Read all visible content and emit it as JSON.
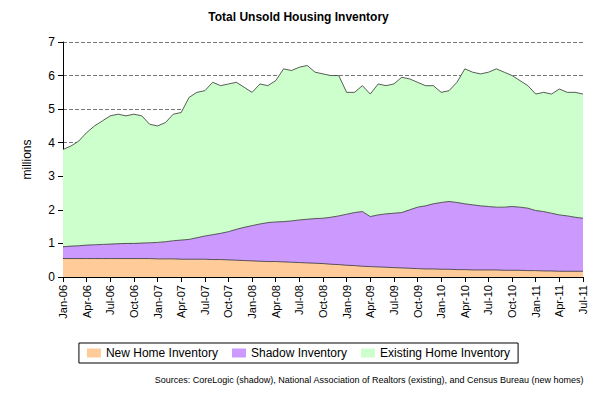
{
  "chart_data": {
    "type": "area",
    "title": "Total Unsold Housing Inventory",
    "y_label": "millions",
    "source": "Sources: CoreLogic (shadow), National Association of Realtors (existing), and Census Bureau (new homes)",
    "stacked": true,
    "grid": true,
    "legend": "bottom",
    "categories": [
      "Jan-06",
      null,
      null,
      "Apr-06",
      null,
      null,
      "Jul-06",
      null,
      null,
      "Oct-06",
      null,
      null,
      "Jan-07",
      null,
      null,
      "Apr-07",
      null,
      null,
      "Jul-07",
      null,
      null,
      "Oct-07",
      null,
      null,
      "Jan-08",
      null,
      null,
      "Apr-08",
      null,
      null,
      "Jul-08",
      null,
      null,
      "Oct-08",
      null,
      null,
      "Jan-09",
      null,
      null,
      "Apr-09",
      null,
      null,
      "Jul-09",
      null,
      null,
      "Oct-09",
      null,
      null,
      "Jan-10",
      null,
      null,
      "Apr-10",
      null,
      null,
      "Jul-10",
      null,
      null,
      "Oct-10",
      null,
      null,
      "Jan-11",
      null,
      null,
      "Apr-11",
      null,
      null,
      "Jul-11"
    ],
    "series": [
      {
        "name": "New Home Inventory",
        "color": "#FFCC99",
        "values": [
          0.55,
          0.55,
          0.55,
          0.55,
          0.55,
          0.55,
          0.55,
          0.55,
          0.55,
          0.55,
          0.55,
          0.55,
          0.54,
          0.54,
          0.54,
          0.53,
          0.53,
          0.53,
          0.53,
          0.52,
          0.52,
          0.51,
          0.5,
          0.49,
          0.48,
          0.47,
          0.46,
          0.46,
          0.45,
          0.44,
          0.43,
          0.42,
          0.41,
          0.4,
          0.38,
          0.37,
          0.35,
          0.34,
          0.32,
          0.31,
          0.3,
          0.29,
          0.28,
          0.27,
          0.26,
          0.25,
          0.24,
          0.24,
          0.23,
          0.23,
          0.22,
          0.22,
          0.21,
          0.21,
          0.21,
          0.21,
          0.2,
          0.2,
          0.2,
          0.19,
          0.19,
          0.18,
          0.18,
          0.17,
          0.17,
          0.17,
          0.17
        ]
      },
      {
        "name": "Shadow Inventory",
        "color": "#CC99FF",
        "values": [
          0.35,
          0.37,
          0.38,
          0.4,
          0.41,
          0.42,
          0.43,
          0.44,
          0.45,
          0.45,
          0.46,
          0.47,
          0.49,
          0.51,
          0.54,
          0.57,
          0.59,
          0.64,
          0.69,
          0.74,
          0.78,
          0.84,
          0.92,
          0.99,
          1.05,
          1.11,
          1.16,
          1.18,
          1.2,
          1.23,
          1.27,
          1.3,
          1.33,
          1.35,
          1.4,
          1.45,
          1.52,
          1.58,
          1.63,
          1.49,
          1.55,
          1.59,
          1.62,
          1.65,
          1.74,
          1.83,
          1.88,
          1.94,
          1.99,
          2.02,
          2.0,
          1.96,
          1.94,
          1.91,
          1.89,
          1.87,
          1.88,
          1.9,
          1.88,
          1.86,
          1.79,
          1.77,
          1.72,
          1.68,
          1.65,
          1.61,
          1.58
        ]
      },
      {
        "name": "Existing Home Inventory",
        "color": "#CCFFCC",
        "values": [
          2.9,
          2.98,
          3.12,
          3.35,
          3.54,
          3.68,
          3.82,
          3.86,
          3.8,
          3.85,
          3.79,
          3.53,
          3.47,
          3.55,
          3.77,
          3.8,
          4.23,
          4.33,
          4.33,
          4.54,
          4.4,
          4.4,
          4.38,
          4.17,
          3.97,
          4.17,
          4.08,
          4.21,
          4.55,
          4.48,
          4.55,
          4.58,
          4.36,
          4.3,
          4.22,
          4.18,
          3.63,
          3.58,
          3.75,
          3.65,
          3.9,
          3.82,
          3.85,
          4.03,
          3.9,
          3.72,
          3.58,
          3.52,
          3.28,
          3.3,
          3.58,
          4.02,
          3.95,
          3.93,
          4.0,
          4.12,
          4.02,
          3.9,
          3.77,
          3.65,
          3.47,
          3.55,
          3.55,
          3.75,
          3.68,
          3.72,
          3.7
        ]
      }
    ],
    "ylim": [
      0,
      7
    ],
    "yticks": [
      0,
      1,
      2,
      3,
      4,
      5,
      6,
      7
    ]
  }
}
